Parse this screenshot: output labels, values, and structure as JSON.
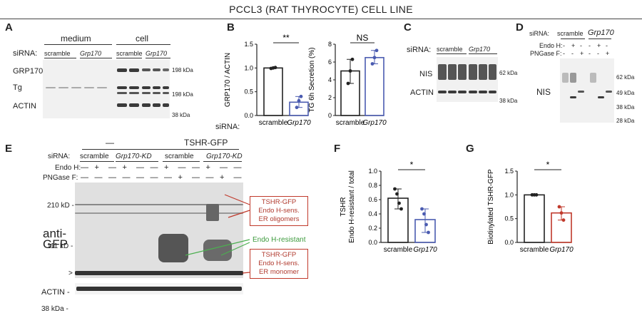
{
  "figure_title": "PCCL3 (RAT THYROCYTE) CELL LINE",
  "panelA": {
    "label": "A",
    "groups": [
      "medium",
      "cell"
    ],
    "sirna_label": "siRNA:",
    "scramble": "scramble",
    "grp170": "Grp170",
    "rows": [
      "GRP170",
      "Tg",
      "ACTIN"
    ],
    "mw": [
      "198 kDa",
      "198 kDa",
      "38 kDa"
    ]
  },
  "panelB": {
    "label": "B",
    "sirna_label": "siRNA:",
    "chart_data": [
      {
        "type": "bar",
        "categories": [
          "scramble",
          "Grp170"
        ],
        "values": [
          1.0,
          0.28
        ],
        "ylabel": "GRP170 / ACTIN",
        "ylim": [
          0,
          1.5
        ],
        "yticks": [
          "0.0",
          "0.5",
          "1.0",
          "1.5"
        ],
        "significance": "**",
        "points": [
          [
            0.99,
            1.0,
            1.01
          ],
          [
            0.17,
            0.31,
            0.4
          ]
        ]
      },
      {
        "type": "bar",
        "categories": [
          "scramble",
          "Grp170"
        ],
        "values": [
          5.0,
          6.5
        ],
        "ylabel": "TG 6h Secretion (%)",
        "ylim": [
          0,
          8
        ],
        "yticks": [
          "0",
          "2",
          "4",
          "6",
          "8"
        ],
        "significance": "NS",
        "points": [
          [
            3.6,
            5.0,
            6.3
          ],
          [
            5.8,
            6.5,
            7.3
          ]
        ]
      }
    ]
  },
  "panelC": {
    "label": "C",
    "sirna_label": "siRNA:",
    "scramble": "scramble",
    "grp170": "Grp170",
    "rows": [
      "NIS",
      "ACTIN"
    ],
    "mw": [
      "62 kDa",
      "38 kDa"
    ]
  },
  "panelD": {
    "label": "D",
    "sirna_label": "siRNA:",
    "scramble": "scramble",
    "grp170": "Grp170",
    "endo_label": "Endo H:",
    "png_label": "PNGase F:",
    "endo_vals": [
      "-",
      "+",
      "-",
      "-",
      "+",
      "-"
    ],
    "png_vals": [
      "-",
      "-",
      "+",
      "-",
      "-",
      "+"
    ],
    "row": "NIS",
    "mw": [
      "62 kDa",
      "49 kDa",
      "38 kDa",
      "28 kDa"
    ]
  },
  "panelE": {
    "label": "E",
    "group_none": "—",
    "group_tshr": "TSHR-GFP",
    "sirna_label": "siRNA:",
    "scramble": "scramble",
    "kd": "Grp170-KD",
    "endo_label": "Endo H:",
    "png_label": "PNGase F:",
    "endo_vals": [
      "—",
      "+",
      "—",
      "+",
      "—",
      "—",
      "+",
      "—",
      "—",
      "+",
      "—",
      "—"
    ],
    "png_vals": [
      "—",
      "—",
      "—",
      "—",
      "—",
      "—",
      "—",
      "+",
      "—",
      "—",
      "+",
      "—"
    ],
    "blot_label_1": "anti-",
    "blot_label_2": "GFP",
    "mw": [
      "210 kD -",
      "111 kD -",
      ">",
      "ACTIN -",
      "38 kDa -"
    ],
    "annot_oligo": [
      "TSHR-GFP",
      "Endo H-sens.",
      "ER oligomers"
    ],
    "annot_resistant": "Endo H-resistant",
    "annot_mono": [
      "TSHR-GFP",
      "Endo H-sens.",
      "ER monomer"
    ]
  },
  "panelF": {
    "label": "F",
    "chart_data": {
      "type": "bar",
      "categories": [
        "scramble",
        "Grp170"
      ],
      "values": [
        0.62,
        0.32
      ],
      "ylabel_1": "TSHR",
      "ylabel_2": "Endo H-resistant / total",
      "ylim": [
        0,
        1.0
      ],
      "yticks": [
        "0.0",
        "0.2",
        "0.4",
        "0.6",
        "0.8",
        "1.0"
      ],
      "significance": "*",
      "points": [
        [
          0.75,
          0.68,
          0.55,
          0.47
        ],
        [
          0.47,
          0.4,
          0.25,
          0.14
        ]
      ]
    }
  },
  "panelG": {
    "label": "G",
    "chart_data": {
      "type": "bar",
      "categories": [
        "scramble",
        "Grp170"
      ],
      "values": [
        1.0,
        0.62
      ],
      "ylabel": "Biotinylated TSHR-GFP",
      "ylim": [
        0,
        1.5
      ],
      "yticks": [
        "0.0",
        "0.5",
        "1.0",
        "1.5"
      ],
      "significance": "*",
      "points": [
        [
          1.0,
          1.0,
          1.0
        ],
        [
          0.75,
          0.62,
          0.47
        ]
      ]
    }
  },
  "colors": {
    "scramble": "#222222",
    "grp170_blue": "#4a5bb0",
    "grp170_red": "#c0392b",
    "annot": "#c0392b",
    "annot_green": "#4caf50"
  }
}
